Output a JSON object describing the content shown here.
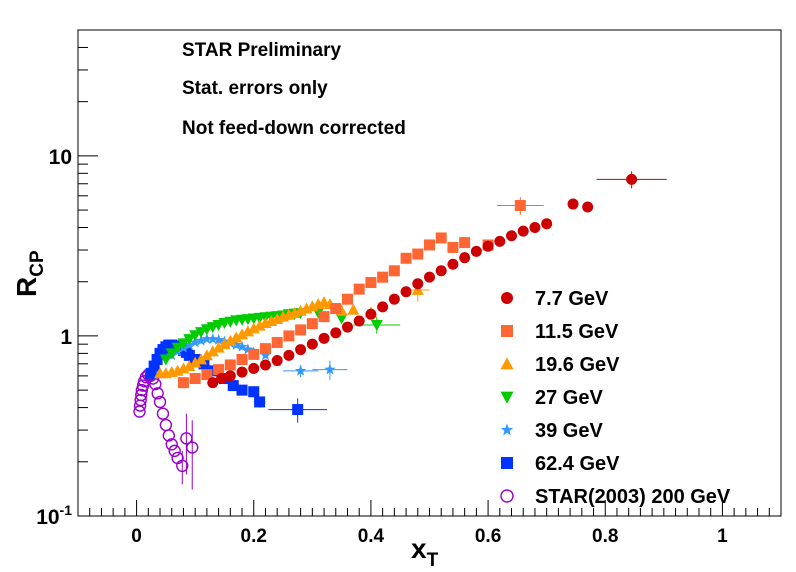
{
  "chart_data": {
    "type": "scatter",
    "title": "",
    "xlabel": "x",
    "xlabel_sub": "T",
    "ylabel": "R",
    "ylabel_sub": "CP",
    "xscale": "linear",
    "yscale": "log",
    "xlim": [
      -0.1,
      1.1
    ],
    "ylim": [
      0.1,
      50
    ],
    "x_ticks": [
      {
        "value": 0,
        "label": "0"
      },
      {
        "value": 0.2,
        "label": "0.2"
      },
      {
        "value": 0.4,
        "label": "0.4"
      },
      {
        "value": 0.6,
        "label": "0.6"
      },
      {
        "value": 0.8,
        "label": "0.8"
      },
      {
        "value": 1,
        "label": "1"
      }
    ],
    "y_ticks": [
      {
        "value": 0.1,
        "base": "10",
        "exp": "-1"
      },
      {
        "value": 1,
        "base": "1",
        "exp": ""
      },
      {
        "value": 10,
        "base": "10",
        "exp": ""
      }
    ],
    "annotations": [
      "STAR Preliminary",
      "Stat. errors only",
      "Not feed-down corrected"
    ],
    "legend_position": "bottom-right",
    "series": [
      {
        "name": "7.7 GeV",
        "marker": "circle",
        "color": "#cc0000",
        "points": [
          {
            "x": 0.13,
            "y": 0.55
          },
          {
            "x": 0.145,
            "y": 0.58
          },
          {
            "x": 0.16,
            "y": 0.6
          },
          {
            "x": 0.18,
            "y": 0.63
          },
          {
            "x": 0.2,
            "y": 0.66
          },
          {
            "x": 0.22,
            "y": 0.69
          },
          {
            "x": 0.24,
            "y": 0.73
          },
          {
            "x": 0.26,
            "y": 0.78
          },
          {
            "x": 0.28,
            "y": 0.84
          },
          {
            "x": 0.3,
            "y": 0.9
          },
          {
            "x": 0.32,
            "y": 0.97
          },
          {
            "x": 0.34,
            "y": 1.04
          },
          {
            "x": 0.36,
            "y": 1.12
          },
          {
            "x": 0.38,
            "y": 1.21
          },
          {
            "x": 0.4,
            "y": 1.32
          },
          {
            "x": 0.42,
            "y": 1.45
          },
          {
            "x": 0.44,
            "y": 1.6
          },
          {
            "x": 0.46,
            "y": 1.76
          },
          {
            "x": 0.48,
            "y": 1.95
          },
          {
            "x": 0.5,
            "y": 2.12
          },
          {
            "x": 0.52,
            "y": 2.3
          },
          {
            "x": 0.54,
            "y": 2.5
          },
          {
            "x": 0.56,
            "y": 2.72
          },
          {
            "x": 0.58,
            "y": 2.95
          },
          {
            "x": 0.6,
            "y": 3.15
          },
          {
            "x": 0.62,
            "y": 3.35
          },
          {
            "x": 0.64,
            "y": 3.6
          },
          {
            "x": 0.66,
            "y": 3.82
          },
          {
            "x": 0.68,
            "y": 4.0
          },
          {
            "x": 0.7,
            "y": 4.2
          },
          {
            "x": 0.745,
            "y": 5.4
          },
          {
            "x": 0.77,
            "y": 5.2
          },
          {
            "x": 0.845,
            "y": 7.4,
            "xerr": 0.06,
            "yerr": 0.8
          }
        ]
      },
      {
        "name": "11.5 GeV",
        "marker": "square",
        "color": "#ff6633",
        "points": [
          {
            "x": 0.08,
            "y": 0.55
          },
          {
            "x": 0.1,
            "y": 0.58
          },
          {
            "x": 0.12,
            "y": 0.61
          },
          {
            "x": 0.14,
            "y": 0.65
          },
          {
            "x": 0.16,
            "y": 0.69
          },
          {
            "x": 0.18,
            "y": 0.74
          },
          {
            "x": 0.2,
            "y": 0.79
          },
          {
            "x": 0.22,
            "y": 0.85
          },
          {
            "x": 0.24,
            "y": 0.92
          },
          {
            "x": 0.26,
            "y": 1.0
          },
          {
            "x": 0.28,
            "y": 1.08
          },
          {
            "x": 0.3,
            "y": 1.17
          },
          {
            "x": 0.32,
            "y": 1.28
          },
          {
            "x": 0.34,
            "y": 1.42
          },
          {
            "x": 0.36,
            "y": 1.6
          },
          {
            "x": 0.38,
            "y": 1.82
          },
          {
            "x": 0.4,
            "y": 1.98
          },
          {
            "x": 0.42,
            "y": 2.12
          },
          {
            "x": 0.44,
            "y": 2.3
          },
          {
            "x": 0.46,
            "y": 2.7
          },
          {
            "x": 0.48,
            "y": 2.85
          },
          {
            "x": 0.5,
            "y": 3.2
          },
          {
            "x": 0.52,
            "y": 3.5
          },
          {
            "x": 0.54,
            "y": 3.1
          },
          {
            "x": 0.56,
            "y": 3.3
          },
          {
            "x": 0.6,
            "y": 3.2
          },
          {
            "x": 0.655,
            "y": 5.3,
            "xerr": 0.04,
            "yerr": 0.6
          }
        ]
      },
      {
        "name": "19.6 GeV",
        "marker": "triangle-up",
        "color": "#ff9900",
        "points": [
          {
            "x": 0.04,
            "y": 0.62
          },
          {
            "x": 0.05,
            "y": 0.62
          },
          {
            "x": 0.06,
            "y": 0.63
          },
          {
            "x": 0.07,
            "y": 0.64
          },
          {
            "x": 0.08,
            "y": 0.66
          },
          {
            "x": 0.09,
            "y": 0.68
          },
          {
            "x": 0.1,
            "y": 0.71
          },
          {
            "x": 0.11,
            "y": 0.74
          },
          {
            "x": 0.12,
            "y": 0.78
          },
          {
            "x": 0.13,
            "y": 0.82
          },
          {
            "x": 0.14,
            "y": 0.86
          },
          {
            "x": 0.15,
            "y": 0.9
          },
          {
            "x": 0.16,
            "y": 0.94
          },
          {
            "x": 0.17,
            "y": 0.98
          },
          {
            "x": 0.18,
            "y": 1.02
          },
          {
            "x": 0.19,
            "y": 1.06
          },
          {
            "x": 0.2,
            "y": 1.1
          },
          {
            "x": 0.21,
            "y": 1.14
          },
          {
            "x": 0.22,
            "y": 1.18
          },
          {
            "x": 0.23,
            "y": 1.21
          },
          {
            "x": 0.24,
            "y": 1.24
          },
          {
            "x": 0.25,
            "y": 1.28
          },
          {
            "x": 0.26,
            "y": 1.31
          },
          {
            "x": 0.27,
            "y": 1.34
          },
          {
            "x": 0.28,
            "y": 1.38
          },
          {
            "x": 0.29,
            "y": 1.42
          },
          {
            "x": 0.3,
            "y": 1.46
          },
          {
            "x": 0.31,
            "y": 1.5
          },
          {
            "x": 0.32,
            "y": 1.54
          },
          {
            "x": 0.33,
            "y": 1.5
          },
          {
            "x": 0.35,
            "y": 1.38
          },
          {
            "x": 0.37,
            "y": 1.4
          },
          {
            "x": 0.4,
            "y": 1.35
          },
          {
            "x": 0.48,
            "y": 1.8,
            "xerr": 0.02,
            "yerr": 0.25
          }
        ]
      },
      {
        "name": "27 GeV",
        "marker": "triangle-down",
        "color": "#00cc00",
        "points": [
          {
            "x": 0.05,
            "y": 0.74
          },
          {
            "x": 0.06,
            "y": 0.8
          },
          {
            "x": 0.07,
            "y": 0.86
          },
          {
            "x": 0.08,
            "y": 0.91
          },
          {
            "x": 0.09,
            "y": 0.96
          },
          {
            "x": 0.1,
            "y": 1.01
          },
          {
            "x": 0.11,
            "y": 1.05
          },
          {
            "x": 0.12,
            "y": 1.09
          },
          {
            "x": 0.13,
            "y": 1.12
          },
          {
            "x": 0.14,
            "y": 1.15
          },
          {
            "x": 0.15,
            "y": 1.18
          },
          {
            "x": 0.16,
            "y": 1.2
          },
          {
            "x": 0.17,
            "y": 1.22
          },
          {
            "x": 0.18,
            "y": 1.23
          },
          {
            "x": 0.19,
            "y": 1.24
          },
          {
            "x": 0.2,
            "y": 1.25
          },
          {
            "x": 0.21,
            "y": 1.26
          },
          {
            "x": 0.22,
            "y": 1.27
          },
          {
            "x": 0.23,
            "y": 1.28
          },
          {
            "x": 0.24,
            "y": 1.29
          },
          {
            "x": 0.25,
            "y": 1.3
          },
          {
            "x": 0.26,
            "y": 1.32
          },
          {
            "x": 0.27,
            "y": 1.33
          },
          {
            "x": 0.28,
            "y": 1.34
          },
          {
            "x": 0.31,
            "y": 1.35
          },
          {
            "x": 0.35,
            "y": 1.25
          },
          {
            "x": 0.41,
            "y": 1.15,
            "xerr": 0.04,
            "yerr": 0.12
          }
        ]
      },
      {
        "name": "39 GeV",
        "marker": "star",
        "color": "#3399ff",
        "points": [
          {
            "x": 0.06,
            "y": 0.78
          },
          {
            "x": 0.07,
            "y": 0.82
          },
          {
            "x": 0.08,
            "y": 0.86
          },
          {
            "x": 0.09,
            "y": 0.89
          },
          {
            "x": 0.1,
            "y": 0.92
          },
          {
            "x": 0.11,
            "y": 0.94
          },
          {
            "x": 0.12,
            "y": 0.96
          },
          {
            "x": 0.13,
            "y": 0.96
          },
          {
            "x": 0.14,
            "y": 0.95
          },
          {
            "x": 0.15,
            "y": 0.93
          },
          {
            "x": 0.16,
            "y": 0.91
          },
          {
            "x": 0.17,
            "y": 0.89
          },
          {
            "x": 0.18,
            "y": 0.87
          },
          {
            "x": 0.19,
            "y": 0.84
          },
          {
            "x": 0.2,
            "y": 0.81
          },
          {
            "x": 0.22,
            "y": 0.78
          },
          {
            "x": 0.24,
            "y": 0.72
          },
          {
            "x": 0.28,
            "y": 0.64,
            "xerr": 0.03,
            "yerr": 0.05
          },
          {
            "x": 0.33,
            "y": 0.65,
            "xerr": 0.03,
            "yerr": 0.08
          }
        ]
      },
      {
        "name": "62.4 GeV",
        "marker": "square",
        "color": "#0033ff",
        "points": [
          {
            "x": 0.025,
            "y": 0.62
          },
          {
            "x": 0.03,
            "y": 0.68
          },
          {
            "x": 0.035,
            "y": 0.74
          },
          {
            "x": 0.04,
            "y": 0.8
          },
          {
            "x": 0.045,
            "y": 0.84
          },
          {
            "x": 0.05,
            "y": 0.87
          },
          {
            "x": 0.055,
            "y": 0.89
          },
          {
            "x": 0.06,
            "y": 0.89
          },
          {
            "x": 0.065,
            "y": 0.88
          },
          {
            "x": 0.07,
            "y": 0.87
          },
          {
            "x": 0.075,
            "y": 0.85
          },
          {
            "x": 0.08,
            "y": 0.83
          },
          {
            "x": 0.085,
            "y": 0.81
          },
          {
            "x": 0.09,
            "y": 0.78
          },
          {
            "x": 0.1,
            "y": 0.74
          },
          {
            "x": 0.115,
            "y": 0.7
          },
          {
            "x": 0.13,
            "y": 0.64
          },
          {
            "x": 0.15,
            "y": 0.58
          },
          {
            "x": 0.165,
            "y": 0.53
          },
          {
            "x": 0.18,
            "y": 0.5
          },
          {
            "x": 0.2,
            "y": 0.49
          },
          {
            "x": 0.21,
            "y": 0.43,
            "xerr": 0.01,
            "yerr": 0.03
          },
          {
            "x": 0.275,
            "y": 0.39,
            "xerr": 0.05,
            "yerr": 0.06
          }
        ]
      },
      {
        "name": "STAR(2003) 200 GeV",
        "marker": "open-circle",
        "color": "#9900cc",
        "points": [
          {
            "x": 0.005,
            "y": 0.38
          },
          {
            "x": 0.006,
            "y": 0.41
          },
          {
            "x": 0.007,
            "y": 0.44
          },
          {
            "x": 0.008,
            "y": 0.47
          },
          {
            "x": 0.009,
            "y": 0.5
          },
          {
            "x": 0.011,
            "y": 0.53
          },
          {
            "x": 0.013,
            "y": 0.56
          },
          {
            "x": 0.016,
            "y": 0.59
          },
          {
            "x": 0.02,
            "y": 0.61
          },
          {
            "x": 0.024,
            "y": 0.6
          },
          {
            "x": 0.028,
            "y": 0.58
          },
          {
            "x": 0.032,
            "y": 0.54
          },
          {
            "x": 0.036,
            "y": 0.48
          },
          {
            "x": 0.04,
            "y": 0.43
          },
          {
            "x": 0.045,
            "y": 0.37
          },
          {
            "x": 0.05,
            "y": 0.32
          },
          {
            "x": 0.055,
            "y": 0.28
          },
          {
            "x": 0.06,
            "y": 0.25
          },
          {
            "x": 0.065,
            "y": 0.23
          },
          {
            "x": 0.07,
            "y": 0.21
          },
          {
            "x": 0.078,
            "y": 0.19,
            "yerr": 0.04
          },
          {
            "x": 0.085,
            "y": 0.27,
            "yerr": 0.1
          },
          {
            "x": 0.095,
            "y": 0.24,
            "yerr": 0.1
          }
        ]
      }
    ]
  }
}
